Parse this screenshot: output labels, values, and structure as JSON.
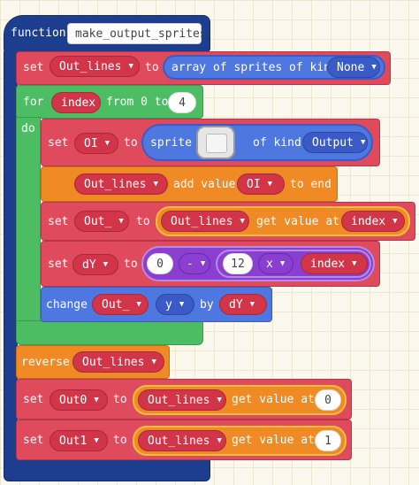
{
  "function": {
    "keyword": "function",
    "name": "make_output_sprites"
  },
  "row1": {
    "set": "set",
    "var": "Out_lines",
    "to": "to",
    "expr": "array of sprites of kind",
    "kind": "None"
  },
  "loop": {
    "for": "for",
    "var": "index",
    "from": "from 0 to",
    "to_value": "4",
    "do": "do"
  },
  "row_set_oi": {
    "set": "set",
    "var": "OI",
    "to": "to",
    "sprite": "sprite",
    "of_kind": "of kind",
    "kind": "Output"
  },
  "row_add": {
    "var": "Out_lines",
    "add": "add value",
    "value_var": "OI",
    "end": "to end"
  },
  "row_set_out": {
    "set": "set",
    "var": "Out_",
    "to": "to",
    "array_var": "Out_lines",
    "get": "get value at",
    "index_var": "index"
  },
  "row_set_dy": {
    "set": "set",
    "var": "dY",
    "to": "to",
    "n0": "0",
    "minus": "-",
    "n12": "12",
    "times": "x",
    "index_var": "index"
  },
  "row_change": {
    "change": "change",
    "var": "Out_",
    "prop": "y",
    "by": "by",
    "by_var": "dY"
  },
  "row_reverse": {
    "reverse": "reverse",
    "var": "Out_lines"
  },
  "row_out0": {
    "set": "set",
    "var": "Out0",
    "to": "to",
    "array_var": "Out_lines",
    "get": "get value at",
    "index": "0"
  },
  "row_out1": {
    "set": "set",
    "var": "Out1",
    "to": "to",
    "array_var": "Out_lines",
    "get": "get value at",
    "index": "1"
  }
}
